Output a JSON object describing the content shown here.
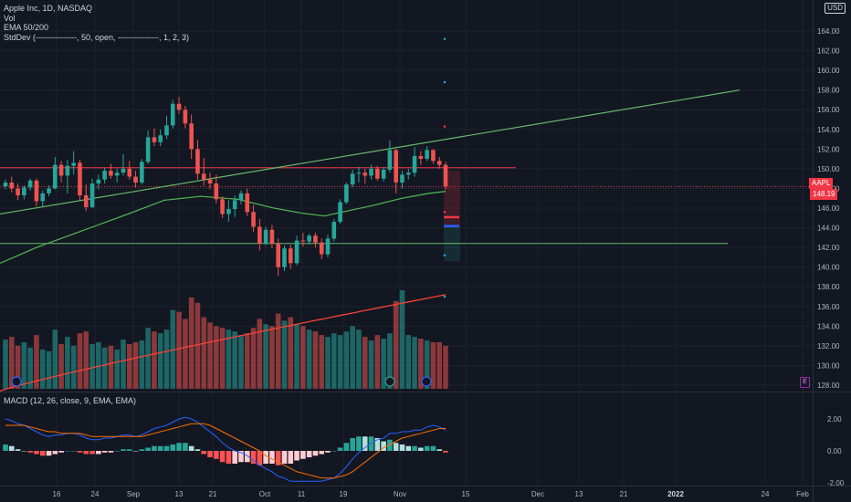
{
  "header": {
    "symbol_line": "Apple Inc, 1D, NASDAQ",
    "vol_label": "Vol",
    "ema_label": "EMA 50/200",
    "stddev_label": "StdDev (---------------, 50, open, ---------------, 1, 2, 3)",
    "currency": "USD"
  },
  "macd": {
    "label": "MACD (12, 26, close, 9, EMA, EMA)",
    "ticks": [
      "2.00",
      "0.00",
      "-2.00"
    ]
  },
  "price_tag": {
    "symbol": "AAPL",
    "value": "148.19"
  },
  "earnings_badge": "E",
  "colors": {
    "bg": "#131722",
    "up": "#26a69a",
    "down": "#ef5350",
    "ema50": "#4caf50",
    "ema200": "#f44336",
    "hline": "#f23645",
    "green_line": "#4caf50"
  },
  "chart_data": {
    "type": "candlestick",
    "y_ticks": [
      "164.00",
      "162.00",
      "160.00",
      "158.00",
      "156.00",
      "154.00",
      "152.00",
      "150.00",
      "148.00",
      "146.00",
      "144.00",
      "142.00",
      "140.00",
      "138.00",
      "136.00",
      "134.00",
      "132.00",
      "130.00",
      "128.00"
    ],
    "x_ticks": [
      "16",
      "24",
      "Sep",
      "13",
      "21",
      "Oct",
      "11",
      "19",
      "Nov",
      "15",
      "Dec",
      "13",
      "21",
      "2022",
      "24",
      "Feb"
    ],
    "candles": [
      [
        148.2,
        148.9,
        147.9,
        148.6
      ],
      [
        148.6,
        149.2,
        147.6,
        148.0
      ],
      [
        148.0,
        148.5,
        146.8,
        147.3
      ],
      [
        147.3,
        148.3,
        146.9,
        148.1
      ],
      [
        148.1,
        149.0,
        147.8,
        148.8
      ],
      [
        148.8,
        149.0,
        146.2,
        146.7
      ],
      [
        146.7,
        147.8,
        146.2,
        147.5
      ],
      [
        147.5,
        148.3,
        147.2,
        148.0
      ],
      [
        148.0,
        151.2,
        147.9,
        150.4
      ],
      [
        150.4,
        150.8,
        148.6,
        149.3
      ],
      [
        149.3,
        150.9,
        147.5,
        150.3
      ],
      [
        150.3,
        151.8,
        149.4,
        150.6
      ],
      [
        150.6,
        150.9,
        146.8,
        147.3
      ],
      [
        147.3,
        148.4,
        145.7,
        146.1
      ],
      [
        146.1,
        149.0,
        146.0,
        148.5
      ],
      [
        148.5,
        149.4,
        147.9,
        148.9
      ],
      [
        148.9,
        150.1,
        148.5,
        149.8
      ],
      [
        149.8,
        150.5,
        149.0,
        149.3
      ],
      [
        149.3,
        150.0,
        148.6,
        149.6
      ],
      [
        149.6,
        151.5,
        149.3,
        150.0
      ],
      [
        150.0,
        150.8,
        148.9,
        149.2
      ],
      [
        149.2,
        149.8,
        148.1,
        148.6
      ],
      [
        148.6,
        151.0,
        148.4,
        150.7
      ],
      [
        150.7,
        153.9,
        150.5,
        153.2
      ],
      [
        153.2,
        154.1,
        152.3,
        152.7
      ],
      [
        152.7,
        154.0,
        152.3,
        153.4
      ],
      [
        153.4,
        155.4,
        153.0,
        154.4
      ],
      [
        154.4,
        157.0,
        154.1,
        156.6
      ],
      [
        156.6,
        157.3,
        155.6,
        156.0
      ],
      [
        156.0,
        156.4,
        154.1,
        154.6
      ],
      [
        154.6,
        155.5,
        151.0,
        152.0
      ],
      [
        152.0,
        152.9,
        148.9,
        149.5
      ],
      [
        149.5,
        151.1,
        148.3,
        148.9
      ],
      [
        148.9,
        149.6,
        147.9,
        148.5
      ],
      [
        148.5,
        149.4,
        146.5,
        146.9
      ],
      [
        146.9,
        147.2,
        145.0,
        145.4
      ],
      [
        145.4,
        146.8,
        144.6,
        145.9
      ],
      [
        145.9,
        147.3,
        145.1,
        146.8
      ],
      [
        146.8,
        147.8,
        146.4,
        147.5
      ],
      [
        147.5,
        148.0,
        145.2,
        145.6
      ],
      [
        145.6,
        146.3,
        143.6,
        144.1
      ],
      [
        144.1,
        144.9,
        141.7,
        142.4
      ],
      [
        142.4,
        144.1,
        142.2,
        143.8
      ],
      [
        143.8,
        144.3,
        141.9,
        142.4
      ],
      [
        142.4,
        142.9,
        139.1,
        140.0
      ],
      [
        140.0,
        142.2,
        139.6,
        141.9
      ],
      [
        141.9,
        142.3,
        139.8,
        140.4
      ],
      [
        140.4,
        143.2,
        140.2,
        142.7
      ],
      [
        142.7,
        143.5,
        142.1,
        142.6
      ],
      [
        142.6,
        143.4,
        142.3,
        143.2
      ],
      [
        143.2,
        143.5,
        142.0,
        142.5
      ],
      [
        142.5,
        142.9,
        140.8,
        141.3
      ],
      [
        141.3,
        143.3,
        141.0,
        142.9
      ],
      [
        142.9,
        144.9,
        142.6,
        144.6
      ],
      [
        144.6,
        146.9,
        144.4,
        146.6
      ],
      [
        146.6,
        148.6,
        146.4,
        148.4
      ],
      [
        148.4,
        149.9,
        148.1,
        149.5
      ],
      [
        149.5,
        150.2,
        148.6,
        149.6
      ],
      [
        149.6,
        150.0,
        148.5,
        149.3
      ],
      [
        149.3,
        150.4,
        148.9,
        150.0
      ],
      [
        150.0,
        150.3,
        148.8,
        149.0
      ],
      [
        149.0,
        150.2,
        148.7,
        149.9
      ],
      [
        149.9,
        152.9,
        149.6,
        151.9
      ],
      [
        151.9,
        152.0,
        147.5,
        148.6
      ],
      [
        148.6,
        149.8,
        148.0,
        149.4
      ],
      [
        149.4,
        150.0,
        148.9,
        149.6
      ],
      [
        149.6,
        152.2,
        149.2,
        151.3
      ],
      [
        151.3,
        151.8,
        150.4,
        151.0
      ],
      [
        151.0,
        152.3,
        150.8,
        151.9
      ],
      [
        151.9,
        152.0,
        150.5,
        150.8
      ],
      [
        150.8,
        151.2,
        150.0,
        150.4
      ],
      [
        150.4,
        150.7,
        147.9,
        148.2
      ]
    ],
    "volume": [
      55,
      58,
      48,
      52,
      46,
      60,
      44,
      42,
      66,
      50,
      58,
      48,
      62,
      64,
      50,
      52,
      46,
      48,
      44,
      55,
      50,
      52,
      54,
      68,
      64,
      62,
      66,
      88,
      86,
      78,
      102,
      96,
      80,
      74,
      70,
      68,
      66,
      64,
      60,
      62,
      68,
      78,
      72,
      70,
      84,
      76,
      80,
      72,
      70,
      66,
      64,
      60,
      58,
      62,
      60,
      64,
      70,
      66,
      58,
      54,
      60,
      56,
      62,
      98,
      110,
      60,
      58,
      56,
      54,
      52,
      52,
      48
    ],
    "macd_line": [
      2.0,
      1.9,
      1.7,
      1.6,
      1.4,
      1.2,
      1.0,
      0.9,
      1.0,
      1.0,
      1.1,
      1.1,
      1.0,
      0.8,
      0.7,
      0.7,
      0.8,
      0.8,
      0.9,
      1.0,
      1.0,
      0.9,
      1.0,
      1.2,
      1.4,
      1.5,
      1.6,
      1.8,
      2.0,
      2.1,
      2.0,
      1.8,
      1.5,
      1.2,
      0.9,
      0.5,
      0.2,
      0.0,
      -0.1,
      -0.3,
      -0.6,
      -0.9,
      -1.1,
      -1.3,
      -1.6,
      -1.7,
      -1.9,
      -1.9,
      -1.9,
      -1.9,
      -1.9,
      -1.9,
      -1.8,
      -1.7,
      -1.4,
      -1.0,
      -0.5,
      -0.1,
      0.2,
      0.5,
      0.7,
      0.8,
      1.1,
      1.1,
      1.2,
      1.2,
      1.3,
      1.3,
      1.5,
      1.6,
      1.5,
      1.3
    ],
    "signal_line": [
      1.6,
      1.6,
      1.6,
      1.6,
      1.5,
      1.4,
      1.3,
      1.2,
      1.2,
      1.1,
      1.1,
      1.1,
      1.1,
      1.0,
      0.9,
      0.9,
      0.9,
      0.9,
      0.9,
      0.9,
      0.9,
      0.9,
      0.9,
      1.0,
      1.1,
      1.2,
      1.3,
      1.4,
      1.5,
      1.6,
      1.7,
      1.7,
      1.7,
      1.6,
      1.4,
      1.2,
      1.0,
      0.8,
      0.6,
      0.4,
      0.2,
      0.0,
      -0.3,
      -0.5,
      -0.7,
      -0.9,
      -1.1,
      -1.3,
      -1.4,
      -1.5,
      -1.6,
      -1.7,
      -1.7,
      -1.7,
      -1.6,
      -1.5,
      -1.3,
      -1.0,
      -0.7,
      -0.4,
      -0.1,
      0.2,
      0.4,
      0.6,
      0.8,
      0.9,
      1.0,
      1.1,
      1.2,
      1.3,
      1.4,
      1.4
    ]
  }
}
